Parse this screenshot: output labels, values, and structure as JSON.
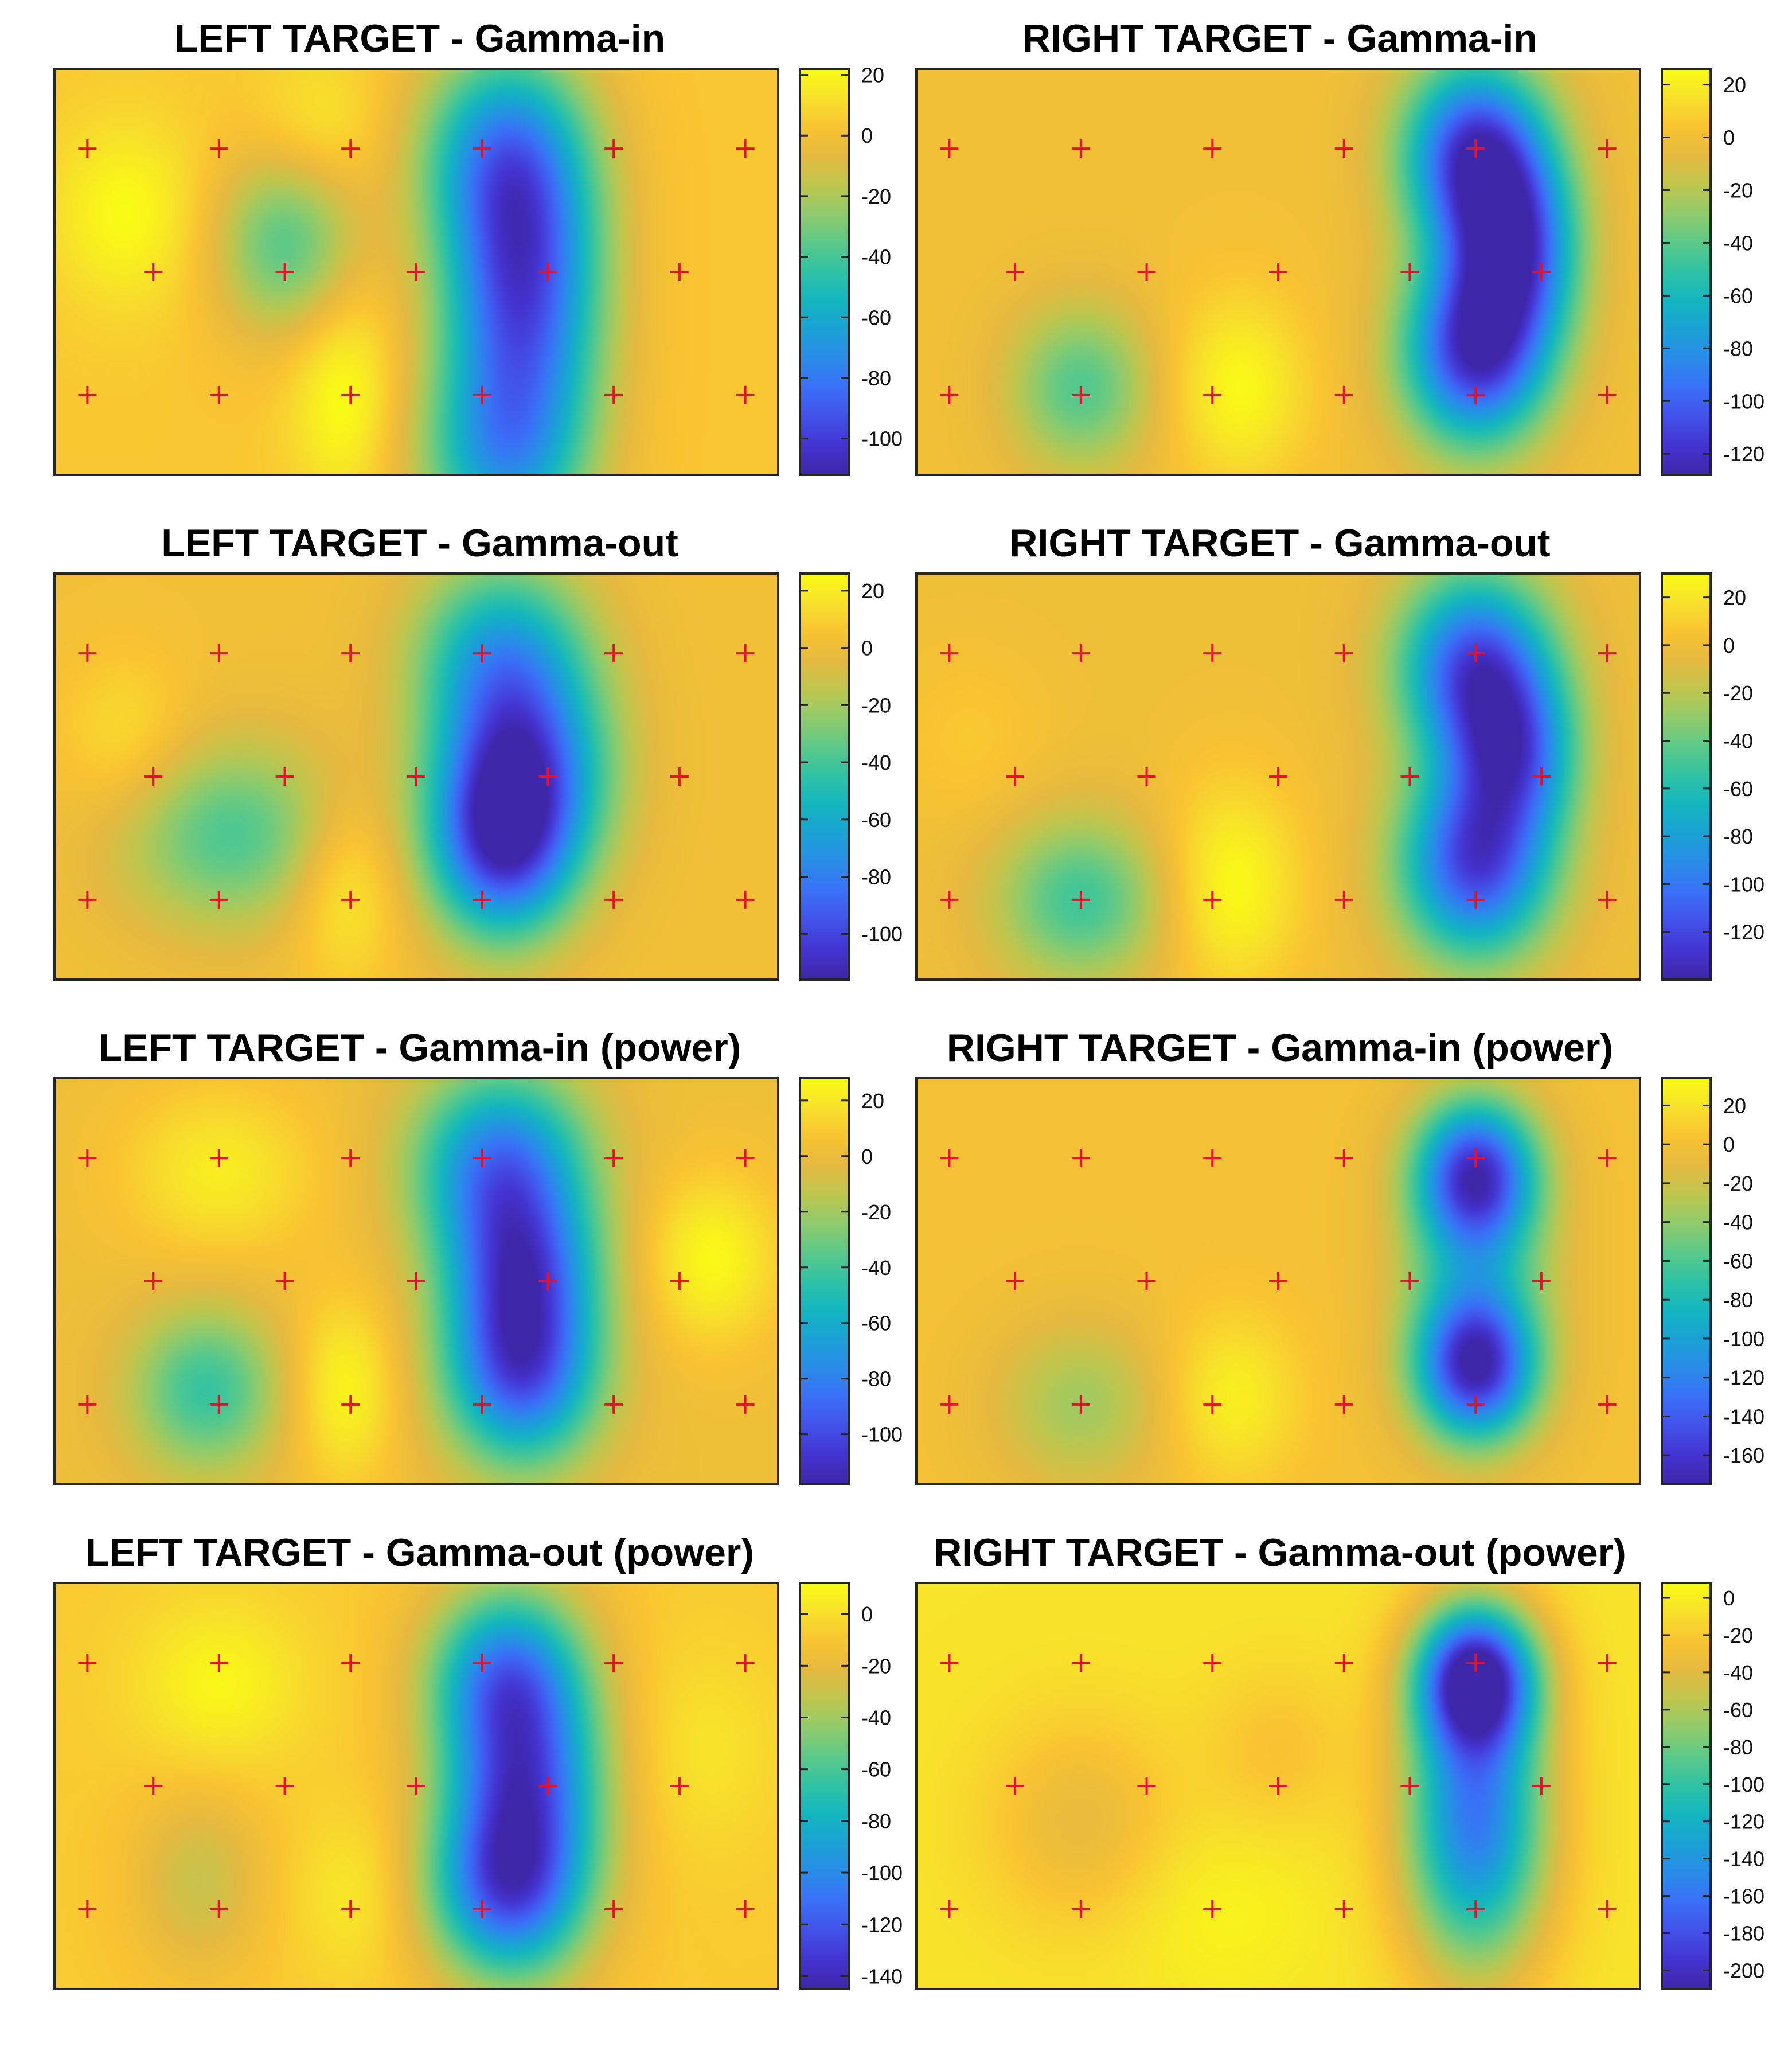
{
  "colormap": [
    "#3e26a8",
    "#4433d0",
    "#4351ea",
    "#3a6ff7",
    "#2a8be9",
    "#1ba1d6",
    "#14b5c0",
    "#2ec2a5",
    "#5bc98a",
    "#8fcb6c",
    "#bfc64e",
    "#e6b940",
    "#f9c432",
    "#f8e12b",
    "#f9fb15"
  ],
  "marker_color": "#e8112d",
  "chart_data": [
    {
      "type": "heatmap",
      "title": "LEFT TARGET - Gamma-in",
      "colorbar": {
        "range": [
          -112,
          22
        ],
        "ticks": [
          20,
          0,
          -20,
          -40,
          -60,
          -80,
          -100
        ]
      },
      "electrodes": {
        "rows": [
          [
            1,
            2,
            3,
            4,
            5,
            6
          ],
          [
            1.5,
            2.5,
            3.5,
            4.5,
            5.5
          ],
          [
            1,
            2,
            3,
            4,
            5,
            6
          ]
        ]
      },
      "base": 4,
      "blobs": [
        {
          "x": 4.3,
          "y": 1.35,
          "amp": -98,
          "sx": 0.42,
          "sy": 0.75
        },
        {
          "x": 4.15,
          "y": 0.4,
          "amp": -55,
          "sx": 0.45,
          "sy": 0.5
        },
        {
          "x": 4.15,
          "y": 2.55,
          "amp": -55,
          "sx": 0.45,
          "sy": 0.5
        },
        {
          "x": 2.5,
          "y": 1.05,
          "amp": -40,
          "sx": 0.38,
          "sy": 0.45
        },
        {
          "x": 1.3,
          "y": 0.85,
          "amp": 18,
          "sx": 0.4,
          "sy": 0.45
        },
        {
          "x": 2.95,
          "y": 2.1,
          "amp": 20,
          "sx": 0.28,
          "sy": 0.5
        },
        {
          "x": 2.75,
          "y": 0.25,
          "amp": 12,
          "sx": 0.35,
          "sy": 0.35
        }
      ]
    },
    {
      "type": "heatmap",
      "title": "RIGHT TARGET - Gamma-in",
      "colorbar": {
        "range": [
          -128,
          26
        ],
        "ticks": [
          20,
          0,
          -20,
          -40,
          -60,
          -80,
          -100,
          -120
        ]
      },
      "electrodes": {
        "rows": [
          [
            1,
            2,
            3,
            4,
            5,
            6
          ],
          [
            1.5,
            2.5,
            3.5,
            4.5,
            5.5
          ],
          [
            1,
            2,
            3,
            4,
            5,
            6
          ]
        ]
      },
      "base": 0,
      "blobs": [
        {
          "x": 5.0,
          "y": 0.45,
          "amp": -118,
          "sx": 0.38,
          "sy": 0.45
        },
        {
          "x": 5.3,
          "y": 1.1,
          "amp": -95,
          "sx": 0.33,
          "sy": 0.45
        },
        {
          "x": 5.0,
          "y": 1.8,
          "amp": -118,
          "sx": 0.38,
          "sy": 0.45
        },
        {
          "x": 2.0,
          "y": 2.05,
          "amp": -42,
          "sx": 0.38,
          "sy": 0.4
        },
        {
          "x": 3.2,
          "y": 2.05,
          "amp": 25,
          "sx": 0.36,
          "sy": 0.45
        }
      ]
    },
    {
      "type": "heatmap",
      "title": "LEFT TARGET - Gamma-out",
      "colorbar": {
        "range": [
          -116,
          26
        ],
        "ticks": [
          20,
          0,
          -20,
          -40,
          -60,
          -80,
          -100
        ]
      },
      "electrodes": {
        "rows": [
          [
            1,
            2,
            3,
            4,
            5,
            6
          ],
          [
            1.5,
            2.5,
            3.5,
            4.5,
            5.5
          ],
          [
            1,
            2,
            3,
            4,
            5,
            6
          ]
        ]
      },
      "base": 2,
      "blobs": [
        {
          "x": 4.3,
          "y": 1.2,
          "amp": -85,
          "sx": 0.45,
          "sy": 0.5
        },
        {
          "x": 4.15,
          "y": 1.75,
          "amp": -85,
          "sx": 0.38,
          "sy": 0.45
        },
        {
          "x": 4.15,
          "y": 0.4,
          "amp": -60,
          "sx": 0.45,
          "sy": 0.45
        },
        {
          "x": 2.1,
          "y": 1.65,
          "amp": -40,
          "sx": 0.6,
          "sy": 0.45
        },
        {
          "x": 2.95,
          "y": 2.0,
          "amp": 22,
          "sx": 0.3,
          "sy": 0.45
        },
        {
          "x": 1.3,
          "y": 1.0,
          "amp": 14,
          "sx": 0.35,
          "sy": 0.4
        }
      ]
    },
    {
      "type": "heatmap",
      "title": "RIGHT TARGET - Gamma-out",
      "colorbar": {
        "range": [
          -140,
          30
        ],
        "ticks": [
          20,
          0,
          -20,
          -40,
          -60,
          -80,
          -100,
          -120
        ]
      },
      "electrodes": {
        "rows": [
          [
            1,
            2,
            3,
            4,
            5,
            6
          ],
          [
            1.5,
            2.5,
            3.5,
            4.5,
            5.5
          ],
          [
            1,
            2,
            3,
            4,
            5,
            6
          ]
        ]
      },
      "base": 0,
      "blobs": [
        {
          "x": 5.0,
          "y": 0.5,
          "amp": -118,
          "sx": 0.4,
          "sy": 0.45
        },
        {
          "x": 5.3,
          "y": 1.1,
          "amp": -85,
          "sx": 0.33,
          "sy": 0.4
        },
        {
          "x": 5.0,
          "y": 1.85,
          "amp": -120,
          "sx": 0.4,
          "sy": 0.45
        },
        {
          "x": 2.0,
          "y": 2.1,
          "amp": -50,
          "sx": 0.45,
          "sy": 0.4
        },
        {
          "x": 3.15,
          "y": 2.0,
          "amp": 30,
          "sx": 0.36,
          "sy": 0.5
        },
        {
          "x": 1.15,
          "y": 1.0,
          "amp": 8,
          "sx": 0.4,
          "sy": 0.4
        }
      ]
    },
    {
      "type": "heatmap",
      "title": "LEFT TARGET - Gamma-in (power)",
      "colorbar": {
        "range": [
          -118,
          28
        ],
        "ticks": [
          20,
          0,
          -20,
          -40,
          -60,
          -80,
          -100
        ]
      },
      "electrodes": {
        "rows": [
          [
            1,
            2,
            3,
            4,
            5,
            6
          ],
          [
            1.5,
            2.5,
            3.5,
            4.5,
            5.5
          ],
          [
            1,
            2,
            3,
            4,
            5,
            6
          ]
        ]
      },
      "base": 2,
      "blobs": [
        {
          "x": 4.15,
          "y": 0.45,
          "amp": -85,
          "sx": 0.45,
          "sy": 0.45
        },
        {
          "x": 4.3,
          "y": 1.15,
          "amp": -70,
          "sx": 0.4,
          "sy": 0.4
        },
        {
          "x": 4.3,
          "y": 1.85,
          "amp": -100,
          "sx": 0.4,
          "sy": 0.45
        },
        {
          "x": 1.9,
          "y": 2.0,
          "amp": -45,
          "sx": 0.4,
          "sy": 0.4
        },
        {
          "x": 2.0,
          "y": 0.5,
          "amp": 20,
          "sx": 0.5,
          "sy": 0.4
        },
        {
          "x": 5.75,
          "y": 1.1,
          "amp": 25,
          "sx": 0.35,
          "sy": 0.4
        },
        {
          "x": 2.95,
          "y": 2.0,
          "amp": 24,
          "sx": 0.28,
          "sy": 0.45
        }
      ]
    },
    {
      "type": "heatmap",
      "title": "RIGHT TARGET - Gamma-in (power)",
      "colorbar": {
        "range": [
          -175,
          34
        ],
        "ticks": [
          20,
          0,
          -20,
          -40,
          -60,
          -80,
          -100,
          -120,
          -140,
          -160
        ]
      },
      "electrodes": {
        "rows": [
          [
            1,
            2,
            3,
            4,
            5,
            6
          ],
          [
            1.5,
            2.5,
            3.5,
            4.5,
            5.5
          ],
          [
            1,
            2,
            3,
            4,
            5,
            6
          ]
        ]
      },
      "base": 0,
      "blobs": [
        {
          "x": 5.0,
          "y": 0.5,
          "amp": -150,
          "sx": 0.32,
          "sy": 0.35
        },
        {
          "x": 5.0,
          "y": 1.85,
          "amp": -160,
          "sx": 0.32,
          "sy": 0.35
        },
        {
          "x": 5.0,
          "y": 1.15,
          "amp": -60,
          "sx": 0.38,
          "sy": 0.5
        },
        {
          "x": 2.0,
          "y": 2.1,
          "amp": -35,
          "sx": 0.45,
          "sy": 0.4
        },
        {
          "x": 3.15,
          "y": 2.05,
          "amp": 28,
          "sx": 0.35,
          "sy": 0.4
        }
      ]
    },
    {
      "type": "heatmap",
      "title": "LEFT TARGET - Gamma-out (power)",
      "colorbar": {
        "range": [
          -145,
          12
        ],
        "ticks": [
          0,
          -20,
          -40,
          -60,
          -80,
          -100,
          -120,
          -140
        ]
      },
      "electrodes": {
        "rows": [
          [
            1,
            2,
            3,
            4,
            5,
            6
          ],
          [
            1.5,
            2.5,
            3.5,
            4.5,
            5.5
          ],
          [
            1,
            2,
            3,
            4,
            5,
            6
          ]
        ]
      },
      "base": -8,
      "blobs": [
        {
          "x": 4.3,
          "y": 1.3,
          "amp": -120,
          "sx": 0.42,
          "sy": 0.7
        },
        {
          "x": 4.15,
          "y": 0.45,
          "amp": -60,
          "sx": 0.4,
          "sy": 0.4
        },
        {
          "x": 4.15,
          "y": 2.0,
          "amp": -60,
          "sx": 0.4,
          "sy": 0.4
        },
        {
          "x": 2.0,
          "y": 0.55,
          "amp": 18,
          "sx": 0.45,
          "sy": 0.4
        },
        {
          "x": 1.85,
          "y": 1.9,
          "amp": -22,
          "sx": 0.35,
          "sy": 0.45
        },
        {
          "x": 3.0,
          "y": 2.0,
          "amp": 12,
          "sx": 0.3,
          "sy": 0.4
        },
        {
          "x": 5.7,
          "y": 1.0,
          "amp": 10,
          "sx": 0.4,
          "sy": 0.5
        }
      ]
    },
    {
      "type": "heatmap",
      "title": "RIGHT TARGET - Gamma-out (power)",
      "colorbar": {
        "range": [
          -210,
          8
        ],
        "ticks": [
          0,
          -20,
          -40,
          -60,
          -80,
          -100,
          -120,
          -140,
          -160,
          -180,
          -200
        ]
      },
      "electrodes": {
        "rows": [
          [
            1,
            2,
            3,
            4,
            5,
            6
          ],
          [
            1.5,
            2.5,
            3.5,
            4.5,
            5.5
          ],
          [
            1,
            2,
            3,
            4,
            5,
            6
          ]
        ]
      },
      "base": -6,
      "blobs": [
        {
          "x": 5.0,
          "y": 0.5,
          "amp": -190,
          "sx": 0.32,
          "sy": 0.35
        },
        {
          "x": 5.0,
          "y": 1.5,
          "amp": -150,
          "sx": 0.38,
          "sy": 0.7
        },
        {
          "x": 2.0,
          "y": 1.5,
          "amp": -30,
          "sx": 0.5,
          "sy": 0.5
        },
        {
          "x": 3.05,
          "y": 2.1,
          "amp": 10,
          "sx": 0.5,
          "sy": 0.4
        },
        {
          "x": 3.5,
          "y": 1.0,
          "amp": -18,
          "sx": 0.4,
          "sy": 0.4
        }
      ]
    }
  ]
}
